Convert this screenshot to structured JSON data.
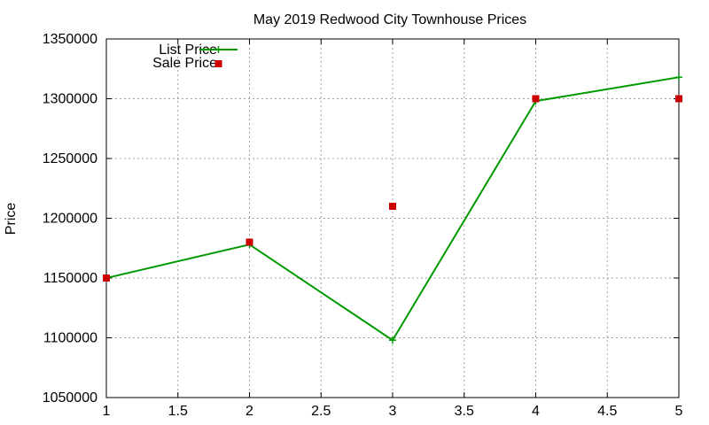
{
  "chart_data": {
    "type": "line",
    "title": "May 2019 Redwood City Townhouse Prices",
    "xlabel": "",
    "ylabel": "Price",
    "xlim": [
      1,
      5
    ],
    "ylim": [
      1050000,
      1350000
    ],
    "x_ticks": [
      1,
      1.5,
      2,
      2.5,
      3,
      3.5,
      4,
      4.5,
      5
    ],
    "y_ticks": [
      1050000,
      1100000,
      1150000,
      1200000,
      1250000,
      1300000,
      1350000
    ],
    "grid": true,
    "legend_position": "top-left",
    "series": [
      {
        "name": "List Price",
        "style": "linespoints",
        "marker": "plus",
        "color": "#009900",
        "x": [
          1,
          2,
          3,
          4,
          5
        ],
        "values": [
          1150000,
          1178000,
          1098000,
          1298000,
          1318000
        ]
      },
      {
        "name": "Sale Price",
        "style": "points",
        "marker": "square",
        "color": "#cc0000",
        "x": [
          1,
          2,
          3,
          4,
          5
        ],
        "values": [
          1150000,
          1180000,
          1210000,
          1300000,
          1300000
        ]
      }
    ]
  }
}
